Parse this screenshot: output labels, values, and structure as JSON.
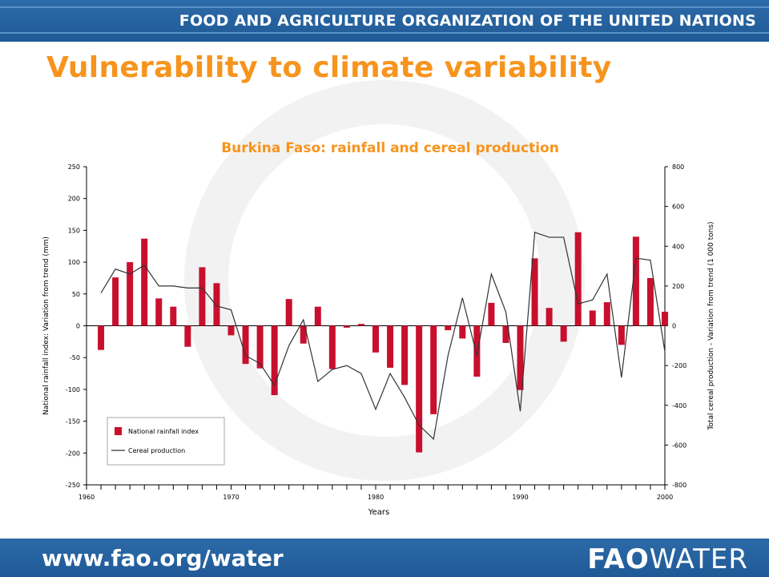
{
  "header": {
    "organization": "FOOD AND AGRICULTURE ORGANIZATION OF THE UNITED NATIONS"
  },
  "slide": {
    "title": "Vulnerability to climate variability"
  },
  "footer": {
    "url": "www.fao.org/water",
    "brand_part1": "FAO",
    "brand_part2": "WATER"
  },
  "colors": {
    "bar": "#c8102e",
    "line": "#333333",
    "title": "#f7941d",
    "banner": "#1f5a96"
  },
  "chart_data": {
    "type": "bar",
    "title": "Burkina Faso: rainfall and cereal production",
    "xlabel": "Years",
    "ylabel_left": "National rainfall index: Variation from trend (mm)",
    "ylabel_right": "Total cereal production - Variation from trend (1 000 tons)",
    "x_ticks": [
      "1960",
      "1970",
      "1980",
      "1990",
      "2000"
    ],
    "ylim_left": [
      -250,
      250
    ],
    "ylim_right": [
      -800,
      800
    ],
    "yticks_left": [
      "250",
      "200",
      "150",
      "100",
      "50",
      "0",
      "-50",
      "-100",
      "-150",
      "-200",
      "-250"
    ],
    "yticks_right": [
      "800",
      "600",
      "400",
      "200",
      "0",
      "-200",
      "-400",
      "-600",
      "-800"
    ],
    "legend_position": "bottom-left",
    "series": [
      {
        "name": "National rainfall index",
        "type": "bar",
        "axis": "left",
        "x": [
          1961,
          1962,
          1963,
          1964,
          1965,
          1966,
          1967,
          1968,
          1969,
          1970,
          1971,
          1972,
          1973,
          1974,
          1975,
          1976,
          1977,
          1978,
          1979,
          1980,
          1981,
          1982,
          1983,
          1984,
          1985,
          1986,
          1987,
          1988,
          1989,
          1990,
          1991,
          1992,
          1993,
          1994,
          1995,
          1996,
          1997,
          1998,
          1999,
          2000
        ],
        "values": [
          -38,
          76,
          100,
          137,
          43,
          30,
          -33,
          92,
          67,
          -15,
          -60,
          -67,
          -109,
          42,
          -28,
          30,
          -68,
          -3,
          3,
          -42,
          -66,
          -93,
          -199,
          -139,
          -7,
          -20,
          -80,
          36,
          -27,
          -101,
          106,
          28,
          -25,
          147,
          24,
          37,
          -30,
          140,
          75,
          22
        ]
      },
      {
        "name": "Cereal production",
        "type": "line",
        "axis": "right",
        "x": [
          1961,
          1962,
          1963,
          1964,
          1965,
          1966,
          1967,
          1968,
          1969,
          1970,
          1971,
          1972,
          1973,
          1974,
          1975,
          1976,
          1977,
          1978,
          1979,
          1980,
          1981,
          1982,
          1983,
          1984,
          1985,
          1986,
          1987,
          1988,
          1989,
          1990,
          1991,
          1992,
          1993,
          1994,
          1995,
          1996,
          1997,
          1998,
          1999,
          2000
        ],
        "values": [
          165,
          285,
          260,
          305,
          200,
          200,
          190,
          190,
          100,
          80,
          -150,
          -190,
          -300,
          -100,
          30,
          -280,
          -220,
          -200,
          -240,
          -420,
          -240,
          -360,
          -500,
          -570,
          -150,
          140,
          -150,
          260,
          70,
          -430,
          470,
          445,
          445,
          110,
          130,
          260,
          -260,
          340,
          330,
          -130
        ]
      }
    ]
  }
}
